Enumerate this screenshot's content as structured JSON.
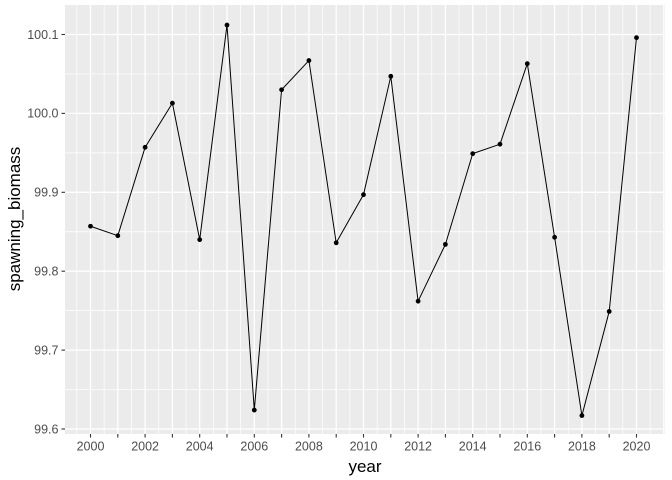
{
  "figure": {
    "background": "#FFFFFF",
    "panel_bg": "#EBEBEB",
    "grid_color": "#FFFFFF",
    "line_color": "#000000",
    "point_color": "#000000",
    "tick_color": "#333333",
    "tick_label_color": "#4D4D4D",
    "axis_title_color": "#000000"
  },
  "chart_data": {
    "type": "line",
    "title": "",
    "xlabel": "year",
    "ylabel": "spawning_biomass",
    "x": [
      2000,
      2001,
      2002,
      2003,
      2004,
      2005,
      2006,
      2007,
      2008,
      2009,
      2010,
      2011,
      2012,
      2013,
      2014,
      2015,
      2016,
      2017,
      2018,
      2019,
      2020
    ],
    "values": [
      99.857,
      99.845,
      99.957,
      100.013,
      99.84,
      100.112,
      99.624,
      100.03,
      100.067,
      99.836,
      99.897,
      100.047,
      99.762,
      99.834,
      99.949,
      99.961,
      100.063,
      99.843,
      99.617,
      99.749,
      100.096
    ],
    "series_name": "spawning_biomass",
    "x_tick_years": [
      2000,
      2001,
      2002,
      2003,
      2004,
      2005,
      2006,
      2007,
      2008,
      2009,
      2010,
      2011,
      2012,
      2013,
      2014,
      2015,
      2016,
      2017,
      2018,
      2019,
      2020
    ],
    "x_label_years": [
      2000,
      2002,
      2004,
      2006,
      2008,
      2010,
      2012,
      2014,
      2016,
      2018,
      2020
    ],
    "x_tick_labels": [
      "2000",
      "2002",
      "2004",
      "2006",
      "2008",
      "2010",
      "2012",
      "2014",
      "2016",
      "2018",
      "2020"
    ],
    "y_ticks": [
      99.6,
      99.7,
      99.8,
      99.9,
      100.0,
      100.1
    ],
    "y_tick_labels": [
      "99.6",
      "99.7",
      "99.8",
      "99.9",
      "100.0",
      "100.1"
    ],
    "xlim": [
      1999,
      2021
    ],
    "ylim": [
      99.593,
      100.137
    ],
    "grid": "major+minor",
    "legend": "none",
    "marker": "point",
    "style": "ggplot2 theme_gray"
  }
}
